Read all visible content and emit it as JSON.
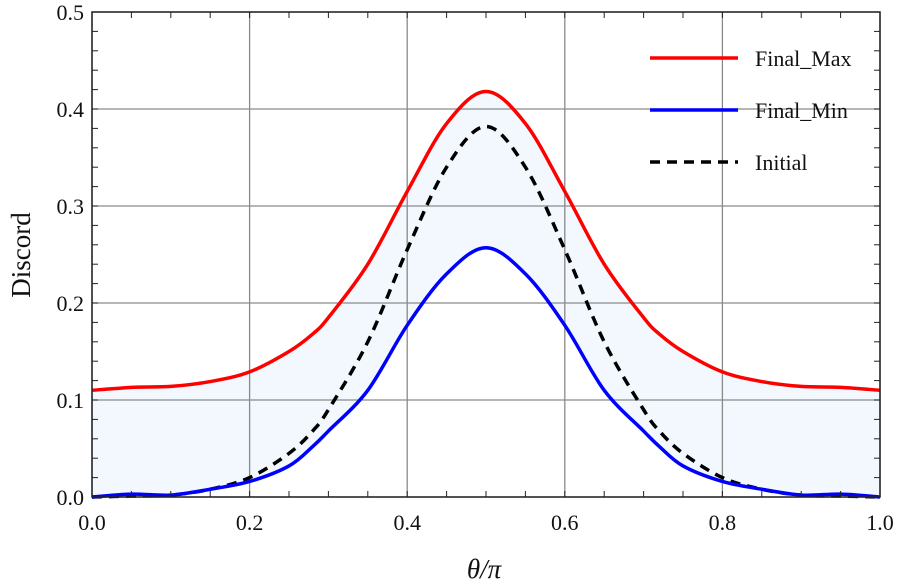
{
  "chart_data": {
    "type": "line",
    "title": "",
    "xlabel": "θ/π",
    "ylabel": "Discord",
    "xlim": [
      0,
      1
    ],
    "ylim": [
      0,
      0.5
    ],
    "xticks": [
      "0.0",
      "0.2",
      "0.4",
      "0.6",
      "0.8",
      "1.0"
    ],
    "yticks": [
      "0.0",
      "0.1",
      "0.2",
      "0.3",
      "0.4",
      "0.5"
    ],
    "grid": true,
    "legend_position": "top-right",
    "fill_between": {
      "lower": "Final_Min",
      "upper": "Final_Max",
      "color": "#f2f8fd"
    },
    "x": [
      0,
      0.05,
      0.1,
      0.15,
      0.2,
      0.25,
      0.28,
      0.3,
      0.35,
      0.4,
      0.45,
      0.5,
      0.55,
      0.6,
      0.65,
      0.7,
      0.72,
      0.75,
      0.8,
      0.85,
      0.9,
      0.95,
      1.0
    ],
    "series": [
      {
        "name": "Final_Max",
        "color": "#ff0000",
        "dash": false,
        "values": [
          0.11,
          0.113,
          0.114,
          0.119,
          0.129,
          0.15,
          0.168,
          0.185,
          0.24,
          0.315,
          0.385,
          0.418,
          0.385,
          0.315,
          0.24,
          0.185,
          0.168,
          0.15,
          0.129,
          0.119,
          0.114,
          0.113,
          0.11
        ]
      },
      {
        "name": "Final_Min",
        "color": "#0000ff",
        "dash": false,
        "values": [
          0.0,
          0.003,
          0.002,
          0.008,
          0.016,
          0.032,
          0.052,
          0.068,
          0.11,
          0.177,
          0.23,
          0.257,
          0.23,
          0.177,
          0.11,
          0.068,
          0.052,
          0.032,
          0.016,
          0.008,
          0.002,
          0.003,
          0.0
        ]
      },
      {
        "name": "Initial",
        "color": "#000000",
        "dash": true,
        "values": [
          0.0,
          0.001,
          0.002,
          0.008,
          0.02,
          0.045,
          0.068,
          0.09,
          0.16,
          0.255,
          0.34,
          0.382,
          0.34,
          0.255,
          0.16,
          0.09,
          0.068,
          0.045,
          0.02,
          0.008,
          0.002,
          0.001,
          0.0
        ]
      }
    ]
  }
}
